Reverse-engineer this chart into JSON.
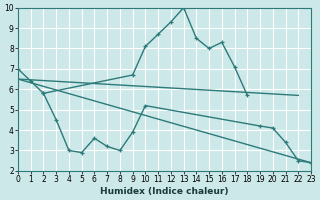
{
  "xlabel": "Humidex (Indice chaleur)",
  "xlim": [
    0,
    23
  ],
  "ylim": [
    2,
    10
  ],
  "yticks": [
    2,
    3,
    4,
    5,
    6,
    7,
    8,
    9,
    10
  ],
  "xticks": [
    0,
    1,
    2,
    3,
    4,
    5,
    6,
    7,
    8,
    9,
    10,
    11,
    12,
    13,
    14,
    15,
    16,
    17,
    18,
    19,
    20,
    21,
    22,
    23
  ],
  "background_color": "#cce8e8",
  "grid_color": "#ffffff",
  "line_color": "#2d7a7a",
  "line1_x": [
    0,
    1,
    2,
    9,
    10,
    11,
    12,
    13,
    14,
    15,
    16,
    17,
    18
  ],
  "line1_y": [
    7.0,
    6.4,
    5.8,
    6.7,
    8.1,
    8.7,
    9.3,
    10.0,
    8.5,
    8.0,
    8.3,
    7.1,
    5.7
  ],
  "line2_x": [
    0,
    22
  ],
  "line2_y": [
    6.5,
    5.7
  ],
  "line3_x": [
    0,
    23
  ],
  "line3_y": [
    6.5,
    2.4
  ],
  "line4_x": [
    2,
    3,
    4,
    5,
    6,
    7,
    8,
    9,
    10,
    19,
    20,
    21,
    22,
    23
  ],
  "line4_y": [
    5.8,
    4.5,
    3.0,
    2.9,
    3.6,
    3.2,
    3.0,
    3.9,
    5.2,
    4.2,
    4.1,
    3.4,
    2.5,
    2.4
  ]
}
